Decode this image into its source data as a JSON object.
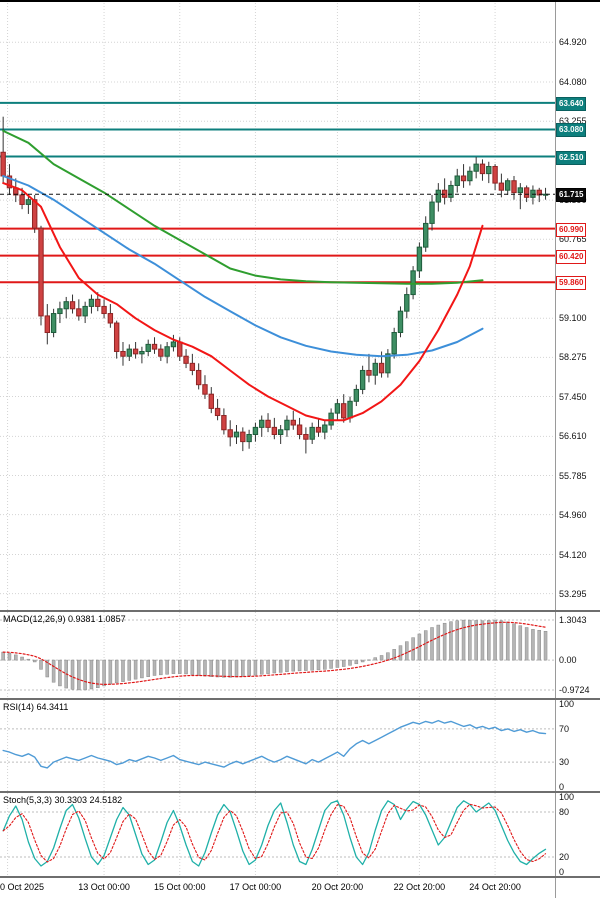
{
  "colors": {
    "up": "#3e8e63",
    "up_stroke": "#1f5c3c",
    "down": "#cf4242",
    "down_stroke": "#8f2525",
    "wick": "#333333",
    "grid": "#d4d4d4",
    "ma_slow": "#2f9e2f",
    "ma_mid": "#3d8fd9",
    "ma_fast": "#f21616",
    "resistance": "#0d7f7d",
    "support": "#e01818",
    "last_line": "#111111",
    "macd_hist": "#b5b5b5",
    "macd_hist_stroke": "#8a8a8a",
    "macd_signal": "#e01818",
    "rsi_line": "#4f9bd6",
    "stoch_k": "#1fb0a8",
    "stoch_d": "#e01818"
  },
  "price_axis": {
    "ticks": [
      {
        "label": "64.920",
        "value": 64.92,
        "style": "plain"
      },
      {
        "label": "64.080",
        "value": 64.08,
        "style": "plain"
      },
      {
        "label": "63.640",
        "value": 63.64,
        "style": "res"
      },
      {
        "label": "63.255",
        "value": 63.255,
        "style": "plain"
      },
      {
        "label": "63.080",
        "value": 63.08,
        "style": "res"
      },
      {
        "label": "62.510",
        "value": 62.51,
        "style": "res"
      },
      {
        "label": "61.715",
        "value": 61.715,
        "style": "last"
      },
      {
        "label": "61.590",
        "value": 61.59,
        "style": "plain"
      },
      {
        "label": "60.990",
        "value": 60.99,
        "style": "sup"
      },
      {
        "label": "60.765",
        "value": 60.765,
        "style": "plain"
      },
      {
        "label": "60.420",
        "value": 60.42,
        "style": "sup"
      },
      {
        "label": "59.860",
        "value": 59.86,
        "style": "sup"
      },
      {
        "label": "59.100",
        "value": 59.1,
        "style": "plain"
      },
      {
        "label": "58.275",
        "value": 58.275,
        "style": "plain"
      },
      {
        "label": "57.450",
        "value": 57.45,
        "style": "plain"
      },
      {
        "label": "56.610",
        "value": 56.61,
        "style": "plain"
      },
      {
        "label": "55.785",
        "value": 55.785,
        "style": "plain"
      },
      {
        "label": "54.960",
        "value": 54.96,
        "style": "plain"
      },
      {
        "label": "54.120",
        "value": 54.12,
        "style": "plain"
      },
      {
        "label": "53.295",
        "value": 53.295,
        "style": "plain"
      }
    ]
  },
  "time_axis": {
    "ticks": [
      {
        "label": "0 Oct 2025",
        "pos": 1.2
      },
      {
        "label": "13 Oct 00:00",
        "pos": 16.5
      },
      {
        "label": "15 Oct 00:00",
        "pos": 28.5
      },
      {
        "label": "17 Oct 00:00",
        "pos": 40.5
      },
      {
        "label": "20 Oct 20:00",
        "pos": 53.5
      },
      {
        "label": "22 Oct 20:00",
        "pos": 66.5
      },
      {
        "label": "24 Oct 20:00",
        "pos": 78.5
      }
    ]
  },
  "panels": {
    "macd": {
      "header": "MACD(12,26,9) 0.9381 1.0857"
    },
    "rsi": {
      "header": "RSI(14) 64.3411"
    },
    "stoch": {
      "header": "Stoch(5,3,3) 30.3303 24.5182"
    }
  },
  "chart_data": {
    "type": "candlestick_with_indicators",
    "main": {
      "ylim": [
        52.95,
        65.81
      ],
      "last_price": {
        "value": 61.715,
        "label": "61.715"
      },
      "levels": [
        {
          "price": 63.64,
          "type": "resistance"
        },
        {
          "price": 63.08,
          "type": "resistance"
        },
        {
          "price": 62.51,
          "type": "resistance"
        },
        {
          "price": 60.99,
          "type": "support"
        },
        {
          "price": 60.42,
          "type": "support"
        },
        {
          "price": 59.86,
          "type": "support"
        }
      ],
      "candles": [
        [
          62.6,
          63.35,
          61.95,
          62.1
        ],
        [
          62.1,
          62.35,
          61.7,
          61.85
        ],
        [
          61.85,
          62.05,
          61.55,
          61.7
        ],
        [
          61.7,
          61.85,
          61.4,
          61.5
        ],
        [
          61.5,
          61.7,
          61.3,
          61.6
        ],
        [
          61.6,
          61.7,
          60.9,
          61.0
        ],
        [
          61.0,
          61.05,
          58.95,
          59.15
        ],
        [
          59.15,
          59.4,
          58.55,
          58.8
        ],
        [
          58.8,
          59.3,
          58.7,
          59.2
        ],
        [
          59.2,
          59.45,
          59.0,
          59.3
        ],
        [
          59.3,
          59.55,
          59.1,
          59.45
        ],
        [
          59.45,
          59.6,
          59.2,
          59.3
        ],
        [
          59.3,
          59.5,
          59.05,
          59.15
        ],
        [
          59.15,
          59.45,
          59.0,
          59.35
        ],
        [
          59.35,
          59.6,
          59.2,
          59.5
        ],
        [
          59.5,
          59.65,
          59.25,
          59.35
        ],
        [
          59.35,
          59.5,
          59.1,
          59.2
        ],
        [
          59.2,
          59.4,
          58.9,
          59.0
        ],
        [
          59.0,
          59.05,
          58.25,
          58.4
        ],
        [
          58.4,
          58.6,
          58.1,
          58.3
        ],
        [
          58.3,
          58.55,
          58.2,
          58.45
        ],
        [
          58.45,
          58.6,
          58.25,
          58.35
        ],
        [
          58.35,
          58.5,
          58.15,
          58.4
        ],
        [
          58.4,
          58.65,
          58.3,
          58.55
        ],
        [
          58.55,
          58.7,
          58.35,
          58.45
        ],
        [
          58.45,
          58.55,
          58.2,
          58.3
        ],
        [
          58.3,
          58.6,
          58.15,
          58.5
        ],
        [
          58.5,
          58.75,
          58.4,
          58.6
        ],
        [
          58.6,
          58.7,
          58.2,
          58.3
        ],
        [
          58.3,
          58.45,
          58.05,
          58.15
        ],
        [
          58.15,
          58.35,
          57.9,
          58.0
        ],
        [
          58.0,
          58.15,
          57.6,
          57.7
        ],
        [
          57.7,
          57.9,
          57.4,
          57.5
        ],
        [
          57.5,
          57.65,
          57.1,
          57.2
        ],
        [
          57.2,
          57.4,
          56.95,
          57.05
        ],
        [
          57.05,
          57.2,
          56.65,
          56.75
        ],
        [
          56.75,
          56.95,
          56.4,
          56.6
        ],
        [
          56.6,
          56.85,
          56.45,
          56.7
        ],
        [
          56.7,
          56.8,
          56.3,
          56.5
        ],
        [
          56.5,
          56.75,
          56.35,
          56.65
        ],
        [
          56.65,
          56.9,
          56.5,
          56.8
        ],
        [
          56.8,
          57.05,
          56.6,
          56.95
        ],
        [
          56.95,
          57.1,
          56.7,
          56.8
        ],
        [
          56.8,
          57.0,
          56.55,
          56.65
        ],
        [
          56.65,
          56.85,
          56.45,
          56.75
        ],
        [
          56.75,
          57.05,
          56.6,
          56.95
        ],
        [
          56.95,
          57.15,
          56.75,
          56.85
        ],
        [
          56.85,
          57.0,
          56.55,
          56.65
        ],
        [
          56.65,
          56.8,
          56.25,
          56.55
        ],
        [
          56.55,
          56.9,
          56.45,
          56.8
        ],
        [
          56.8,
          57.0,
          56.6,
          56.7
        ],
        [
          56.7,
          56.95,
          56.55,
          56.85
        ],
        [
          56.85,
          57.2,
          56.75,
          57.1
        ],
        [
          57.1,
          57.4,
          56.95,
          57.3
        ],
        [
          57.3,
          57.5,
          56.9,
          57.0
        ],
        [
          57.0,
          57.45,
          56.9,
          57.35
        ],
        [
          57.35,
          57.7,
          57.25,
          57.6
        ],
        [
          57.6,
          58.1,
          57.5,
          58.0
        ],
        [
          58.0,
          58.35,
          57.75,
          57.9
        ],
        [
          57.9,
          58.25,
          57.7,
          58.15
        ],
        [
          58.15,
          58.4,
          57.85,
          57.95
        ],
        [
          57.95,
          58.45,
          57.85,
          58.35
        ],
        [
          58.35,
          58.9,
          58.25,
          58.8
        ],
        [
          58.8,
          59.35,
          58.7,
          59.25
        ],
        [
          59.25,
          59.75,
          59.1,
          59.6
        ],
        [
          59.6,
          60.2,
          59.5,
          60.1
        ],
        [
          60.1,
          60.7,
          59.95,
          60.6
        ],
        [
          60.6,
          61.25,
          60.5,
          61.1
        ],
        [
          61.1,
          61.7,
          60.95,
          61.55
        ],
        [
          61.55,
          61.95,
          61.35,
          61.8
        ],
        [
          61.8,
          62.05,
          61.5,
          61.65
        ],
        [
          61.65,
          62.0,
          61.55,
          61.9
        ],
        [
          61.9,
          62.25,
          61.75,
          62.1
        ],
        [
          62.1,
          62.35,
          61.85,
          62.0
        ],
        [
          62.0,
          62.3,
          61.9,
          62.2
        ],
        [
          62.2,
          62.5,
          62.05,
          62.35
        ],
        [
          62.35,
          62.45,
          62.0,
          62.15
        ],
        [
          62.15,
          62.4,
          61.95,
          62.3
        ],
        [
          62.3,
          62.35,
          61.8,
          61.95
        ],
        [
          61.95,
          62.15,
          61.65,
          61.8
        ],
        [
          61.8,
          62.05,
          61.7,
          62.0
        ],
        [
          62.0,
          62.1,
          61.6,
          61.75
        ],
        [
          61.75,
          61.95,
          61.4,
          61.85
        ],
        [
          61.85,
          61.9,
          61.55,
          61.65
        ],
        [
          61.65,
          61.9,
          61.5,
          61.8
        ],
        [
          61.8,
          61.85,
          61.55,
          61.7
        ],
        [
          61.7,
          61.85,
          61.6,
          61.715
        ]
      ],
      "ma": {
        "slow": [
          [
            0,
            63.05
          ],
          [
            4,
            62.8
          ],
          [
            8,
            62.35
          ],
          [
            12,
            62.05
          ],
          [
            16,
            61.75
          ],
          [
            20,
            61.4
          ],
          [
            24,
            61.05
          ],
          [
            28,
            60.75
          ],
          [
            32,
            60.45
          ],
          [
            36,
            60.15
          ],
          [
            40,
            60.0
          ],
          [
            44,
            59.92
          ],
          [
            48,
            59.88
          ],
          [
            52,
            59.86
          ],
          [
            56,
            59.85
          ],
          [
            60,
            59.84
          ],
          [
            64,
            59.83
          ],
          [
            68,
            59.83
          ],
          [
            72,
            59.85
          ],
          [
            76,
            59.9
          ]
        ],
        "mid": [
          [
            0,
            62.1
          ],
          [
            4,
            61.9
          ],
          [
            8,
            61.6
          ],
          [
            12,
            61.25
          ],
          [
            16,
            60.9
          ],
          [
            20,
            60.55
          ],
          [
            24,
            60.25
          ],
          [
            28,
            59.9
          ],
          [
            32,
            59.55
          ],
          [
            36,
            59.25
          ],
          [
            40,
            58.95
          ],
          [
            44,
            58.7
          ],
          [
            48,
            58.52
          ],
          [
            52,
            58.4
          ],
          [
            56,
            58.33
          ],
          [
            60,
            58.3
          ],
          [
            64,
            58.33
          ],
          [
            68,
            58.42
          ],
          [
            72,
            58.6
          ],
          [
            76,
            58.88
          ]
        ],
        "fast": [
          [
            0,
            61.95
          ],
          [
            3,
            61.8
          ],
          [
            6,
            61.45
          ],
          [
            9,
            60.6
          ],
          [
            12,
            59.95
          ],
          [
            15,
            59.6
          ],
          [
            18,
            59.4
          ],
          [
            21,
            59.1
          ],
          [
            24,
            58.85
          ],
          [
            27,
            58.65
          ],
          [
            30,
            58.5
          ],
          [
            33,
            58.3
          ],
          [
            36,
            58.0
          ],
          [
            39,
            57.7
          ],
          [
            42,
            57.45
          ],
          [
            45,
            57.25
          ],
          [
            48,
            57.05
          ],
          [
            51,
            56.95
          ],
          [
            54,
            56.95
          ],
          [
            57,
            57.1
          ],
          [
            60,
            57.35
          ],
          [
            63,
            57.7
          ],
          [
            66,
            58.2
          ],
          [
            69,
            58.85
          ],
          [
            72,
            59.6
          ],
          [
            74,
            60.2
          ],
          [
            76,
            61.05
          ]
        ]
      }
    },
    "macd": {
      "macd_value": 0.9381,
      "signal_value": 1.0857,
      "ylim": [
        -1.233,
        1.5645
      ],
      "axis": [
        {
          "label": "1.3043",
          "value": 1.3043
        },
        {
          "label": "0.00",
          "value": 0
        },
        {
          "label": "-0.9724",
          "value": -0.9724
        }
      ],
      "hist": [
        0.26,
        0.22,
        0.17,
        0.1,
        0.03,
        -0.06,
        -0.3,
        -0.55,
        -0.72,
        -0.84,
        -0.91,
        -0.95,
        -0.97,
        -0.97,
        -0.94,
        -0.9,
        -0.84,
        -0.78,
        -0.74,
        -0.7,
        -0.66,
        -0.62,
        -0.58,
        -0.54,
        -0.5,
        -0.48,
        -0.46,
        -0.44,
        -0.44,
        -0.45,
        -0.47,
        -0.5,
        -0.52,
        -0.54,
        -0.55,
        -0.56,
        -0.56,
        -0.55,
        -0.53,
        -0.51,
        -0.49,
        -0.46,
        -0.44,
        -0.42,
        -0.4,
        -0.38,
        -0.36,
        -0.35,
        -0.34,
        -0.33,
        -0.32,
        -0.3,
        -0.27,
        -0.24,
        -0.21,
        -0.17,
        -0.12,
        -0.06,
        0.01,
        0.08,
        0.15,
        0.24,
        0.35,
        0.47,
        0.6,
        0.73,
        0.85,
        0.96,
        1.06,
        1.14,
        1.2,
        1.25,
        1.28,
        1.3,
        1.3,
        1.29,
        1.28,
        1.29,
        1.3043,
        1.28,
        1.24,
        1.18,
        1.12,
        1.06,
        1.0,
        0.97,
        0.9381
      ]
    },
    "rsi": {
      "value": 64.3411,
      "levels": [
        70,
        30
      ],
      "axis": [
        {
          "label": "100",
          "value": 100
        },
        {
          "label": "70",
          "value": 70
        },
        {
          "label": "30",
          "value": 30
        },
        {
          "label": "0",
          "value": 0
        }
      ],
      "series": [
        44,
        42,
        39,
        37,
        40,
        36,
        25,
        23,
        30,
        33,
        36,
        34,
        32,
        35,
        38,
        35,
        33,
        31,
        27,
        29,
        33,
        31,
        34,
        37,
        35,
        32,
        35,
        38,
        33,
        31,
        29,
        27,
        30,
        28,
        26,
        24,
        28,
        31,
        28,
        31,
        34,
        37,
        33,
        30,
        33,
        37,
        34,
        31,
        28,
        33,
        30,
        34,
        38,
        42,
        37,
        46,
        52,
        56,
        52,
        56,
        60,
        64,
        68,
        72,
        75,
        78,
        76,
        79,
        77,
        80,
        77,
        79,
        76,
        73,
        75,
        71,
        73,
        70,
        72,
        68,
        70,
        67,
        69,
        66,
        68,
        65,
        64.3411
      ]
    },
    "stoch": {
      "k_value": 30.3303,
      "d_value": 24.5182,
      "levels": [
        80,
        20
      ],
      "axis": [
        {
          "label": "100",
          "value": 100
        },
        {
          "label": "80",
          "value": 80
        },
        {
          "label": "20",
          "value": 20
        },
        {
          "label": "0",
          "value": 0
        }
      ],
      "k": [
        55,
        75,
        88,
        70,
        40,
        18,
        8,
        14,
        32,
        58,
        82,
        90,
        72,
        45,
        20,
        10,
        22,
        46,
        70,
        86,
        76,
        50,
        24,
        10,
        16,
        40,
        66,
        82,
        62,
        36,
        14,
        8,
        26,
        52,
        76,
        90,
        80,
        55,
        28,
        10,
        16,
        36,
        62,
        82,
        92,
        66,
        36,
        14,
        10,
        30,
        56,
        82,
        92,
        95,
        76,
        46,
        20,
        10,
        26,
        56,
        82,
        95,
        90,
        70,
        84,
        94,
        90,
        76,
        56,
        36,
        46,
        66,
        86,
        95,
        90,
        80,
        86,
        92,
        82,
        62,
        42,
        26,
        14,
        10,
        18,
        25,
        30.3303
      ]
    }
  }
}
